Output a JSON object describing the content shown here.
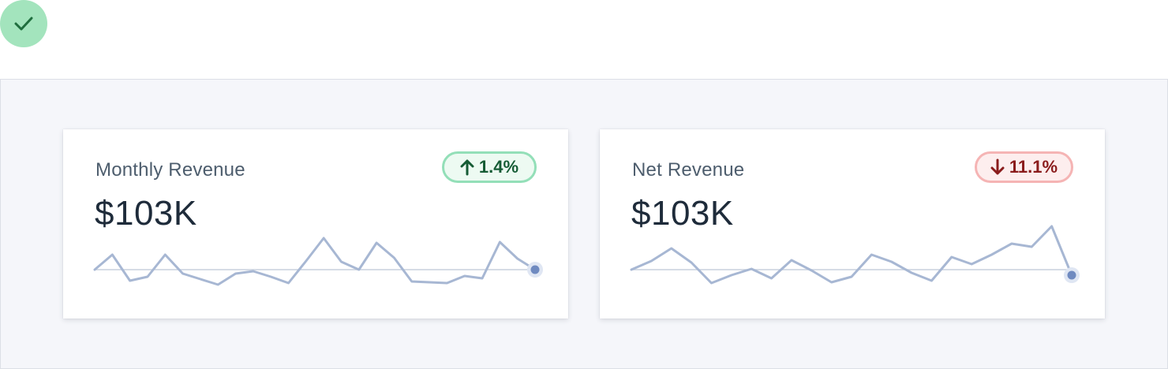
{
  "status": {
    "icon": "check-icon"
  },
  "colors": {
    "sparkline": "#a7b7d3",
    "baseline": "#c8d0de",
    "endpoint": "#6f8ac0",
    "up_border": "#93dfb8",
    "up_text": "#165c35",
    "down_border": "#f5b4b4",
    "down_text": "#8a1c1c"
  },
  "cards": [
    {
      "title": "Monthly Revenue",
      "value": "$103K",
      "change": {
        "direction": "up",
        "icon": "arrow-up-icon",
        "label": "1.4%"
      },
      "sparkline": [
        0,
        19,
        -14,
        -9,
        19,
        -5,
        -12,
        -19,
        -5,
        -2,
        -9,
        -17,
        11,
        40,
        10,
        0,
        34,
        15,
        -15,
        -16,
        -17,
        -8,
        -11,
        35,
        14,
        0
      ]
    },
    {
      "title": "Net Revenue",
      "value": "$103K",
      "change": {
        "direction": "down",
        "icon": "arrow-down-icon",
        "label": "11.1%"
      },
      "sparkline": [
        0,
        11,
        27,
        9,
        -17,
        -7,
        1,
        -11,
        12,
        -1,
        -16,
        -9,
        19,
        10,
        -4,
        -14,
        16,
        7,
        19,
        33,
        29,
        55,
        -7
      ]
    }
  ]
}
